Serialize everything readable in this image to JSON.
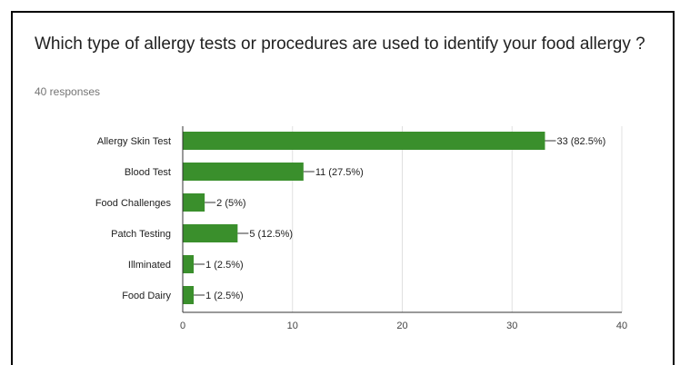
{
  "question": {
    "title": "Which type of allergy tests or procedures are used to identify your food allergy ?",
    "responses_label": "40 responses"
  },
  "colors": {
    "bar": "#3a8f2c",
    "grid": "#e0e0e0",
    "axis": "#333333",
    "label": "#212121",
    "tick": "#444444"
  },
  "chart_data": {
    "type": "bar",
    "orientation": "horizontal",
    "categories": [
      "Allergy Skin Test",
      "Blood Test",
      "Food Challenges",
      "Patch Testing",
      "Illminated",
      "Food Dairy"
    ],
    "values": [
      33,
      11,
      2,
      5,
      1,
      1
    ],
    "data_labels": [
      "33 (82.5%)",
      "11 (27.5%)",
      "2 (5%)",
      "5 (12.5%)",
      "1 (2.5%)",
      "1 (2.5%)"
    ],
    "xlim": [
      0,
      40
    ],
    "xticks": [
      0,
      10,
      20,
      30,
      40
    ],
    "grid": true,
    "legend": "none"
  }
}
